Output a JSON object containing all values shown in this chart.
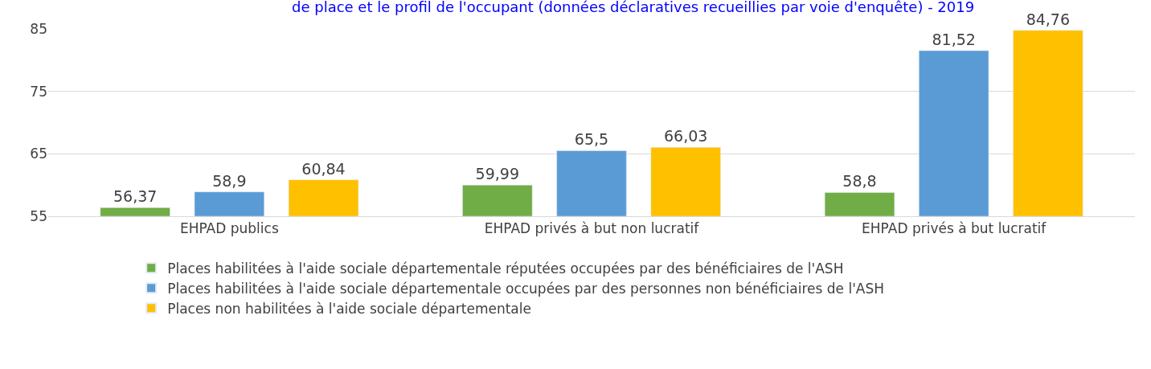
{
  "chart_data": {
    "type": "bar",
    "title": "de place et le profil de l'occupant (données déclaratives recueillies par voie d'enquête) - 2019",
    "categories": [
      "EHPAD publics",
      "EHPAD privés à but non lucratif",
      "EHPAD privés à but lucratif"
    ],
    "series": [
      {
        "name": "Places habilitées à l'aide sociale départementale réputées occupées par des bénéficiaires de l'ASH",
        "color": "#70ad47",
        "values": [
          56.37,
          59.99,
          58.8
        ],
        "value_labels": [
          "56,37",
          "59,99",
          "58,8"
        ]
      },
      {
        "name": "Places habilitées à l'aide sociale départementale occupées par des personnes non bénéficiaires de l'ASH",
        "color": "#5b9bd5",
        "values": [
          58.9,
          65.5,
          81.52
        ],
        "value_labels": [
          "58,9",
          "65,5",
          "81,52"
        ]
      },
      {
        "name": "Places non habilitées à l'aide sociale départementale",
        "color": "#ffc000",
        "values": [
          60.84,
          66.03,
          84.76
        ],
        "value_labels": [
          "60,84",
          "66,03",
          "84,76"
        ]
      }
    ],
    "ylim": [
      55,
      85
    ],
    "yticks": [
      55,
      65,
      75,
      85
    ],
    "grid": "y",
    "legend": "bottom"
  }
}
